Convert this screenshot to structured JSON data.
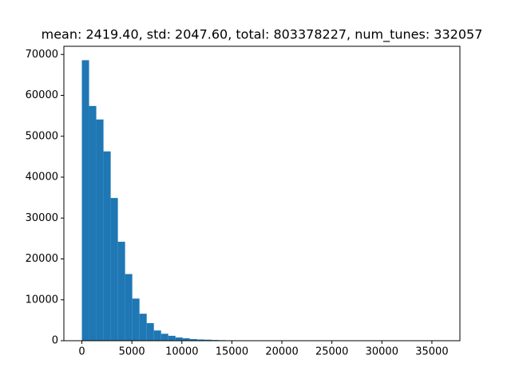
{
  "chart_data": {
    "type": "histogram",
    "title": "mean: 2419.40, std: 2047.60, total: 803378227, num_tunes: 332057",
    "color": "#1f77b4",
    "bins": [
      0,
      720,
      1440,
      2160,
      2880,
      3600,
      4320,
      5040,
      5760,
      6480,
      7200,
      7920,
      8640,
      9360,
      10080,
      10800,
      11520,
      12240,
      12960,
      13680,
      14400,
      15120,
      15840,
      16560,
      17280,
      18000,
      18720,
      19440,
      20160,
      20880,
      21600,
      22320,
      23040,
      23760,
      24480,
      25200,
      25920,
      26640,
      27360,
      28080,
      28800,
      29520,
      30240,
      30960,
      31680,
      32400,
      33120,
      33840,
      34560,
      35280,
      36000
    ],
    "values": [
      68600,
      57400,
      54100,
      46300,
      34900,
      24200,
      16300,
      10300,
      6600,
      4300,
      2500,
      1700,
      1200,
      800,
      600,
      400,
      300,
      250,
      180,
      130,
      100,
      80,
      60,
      50,
      40,
      30,
      25,
      20,
      15,
      12,
      10,
      8,
      6,
      5,
      4,
      3,
      3,
      2,
      2,
      1,
      1,
      1,
      1,
      1,
      0,
      1,
      0,
      0,
      0,
      1
    ],
    "xlim": [
      -1800,
      37800
    ],
    "ylim": [
      0,
      72000
    ],
    "xticks": [
      0,
      5000,
      10000,
      15000,
      20000,
      25000,
      30000,
      35000
    ],
    "yticks": [
      0,
      10000,
      20000,
      30000,
      40000,
      50000,
      60000,
      70000
    ]
  }
}
